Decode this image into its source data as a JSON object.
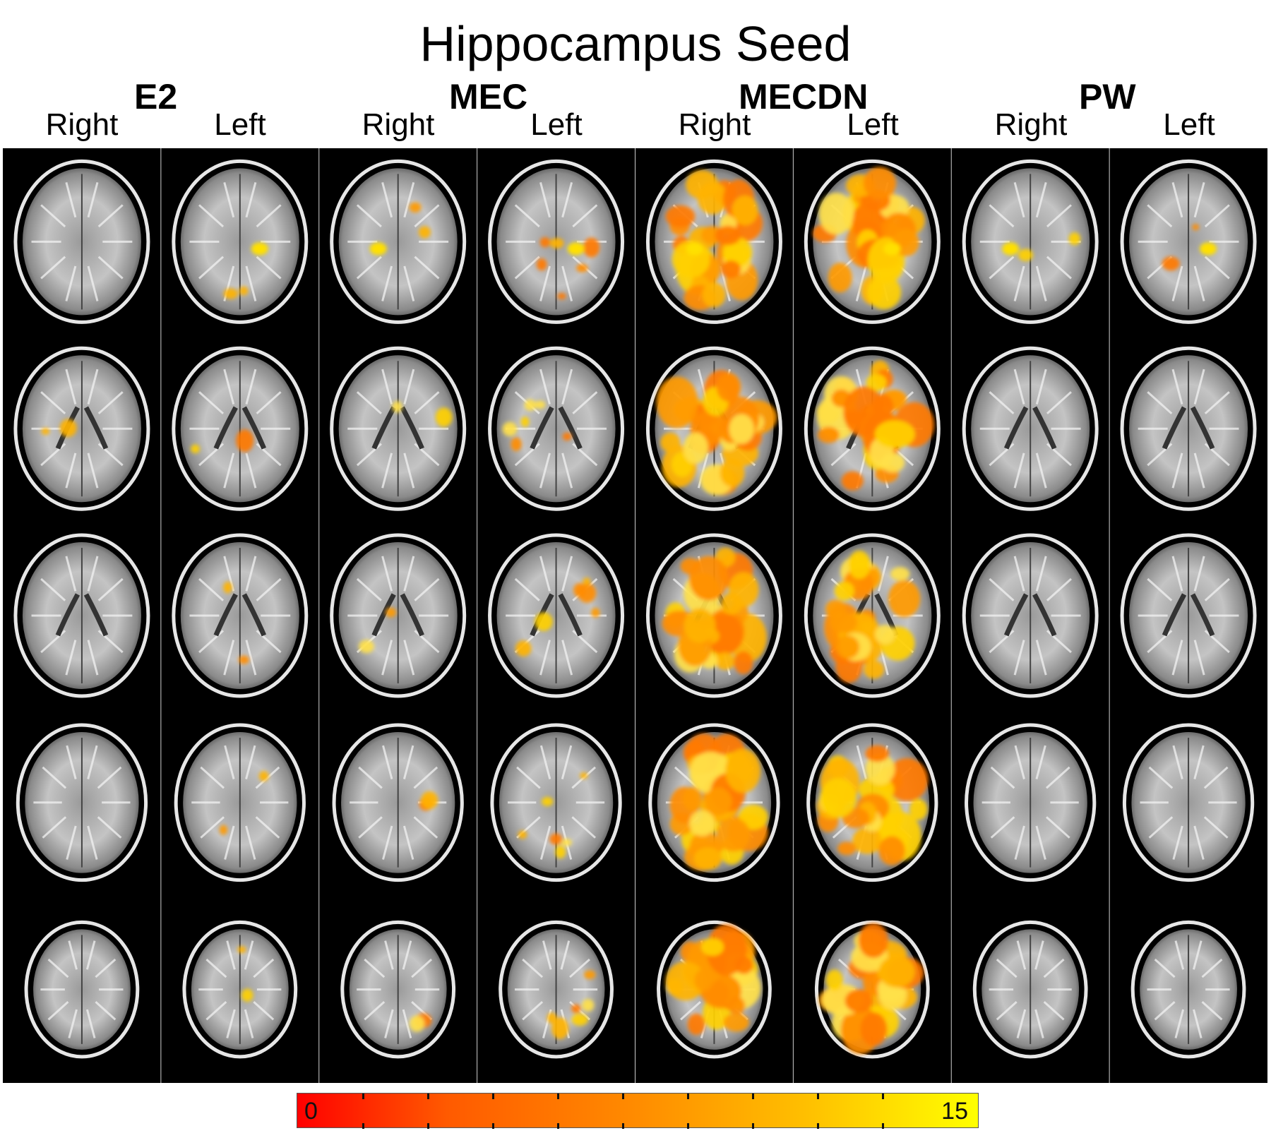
{
  "title": "Hippocampus Seed",
  "groups": [
    "E2",
    "MEC",
    "MECDN",
    "PW"
  ],
  "sides": [
    "Right",
    "Left",
    "Right",
    "Left",
    "Right",
    "Left",
    "Right",
    "Left"
  ],
  "slices_per_column": 5,
  "activation": [
    [
      0,
      1,
      0,
      0,
      0
    ],
    [
      1,
      1,
      1,
      1,
      1
    ],
    [
      1,
      1,
      1,
      1,
      1
    ],
    [
      2,
      2,
      2,
      2,
      2
    ],
    [
      5,
      5,
      5,
      5,
      5
    ],
    [
      5,
      5,
      5,
      5,
      5
    ],
    [
      1,
      0,
      0,
      0,
      0
    ],
    [
      1,
      0,
      0,
      0,
      0
    ]
  ],
  "colorbar": {
    "min_label": "0",
    "max_label": "15",
    "min": 0,
    "max": 15,
    "colors": [
      "#ff0000",
      "#ff8c00",
      "#ffff00"
    ]
  }
}
